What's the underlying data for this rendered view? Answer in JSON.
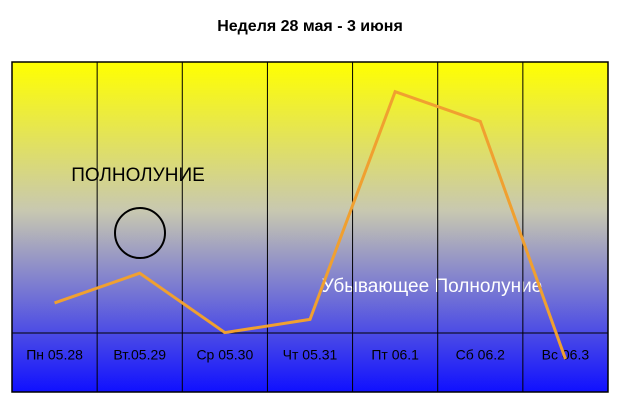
{
  "chart_data": {
    "type": "line",
    "title": "Неделя 28 мая - 3 июня",
    "categories": [
      "Пн 05.28",
      "Вт.05.29",
      "Ср 05.30",
      "Чт 05.31",
      "Пт 06.1",
      "Сб 06.2",
      "Вс 06.3"
    ],
    "series": [
      {
        "color": "#f0a030",
        "values": [
          27,
          36,
          18,
          22,
          91,
          82,
          10
        ]
      }
    ],
    "ylim": [
      0,
      100
    ],
    "annotations": [
      "ПОЛНОЛУНИЕ",
      "Убывающее Полнолуние"
    ]
  }
}
